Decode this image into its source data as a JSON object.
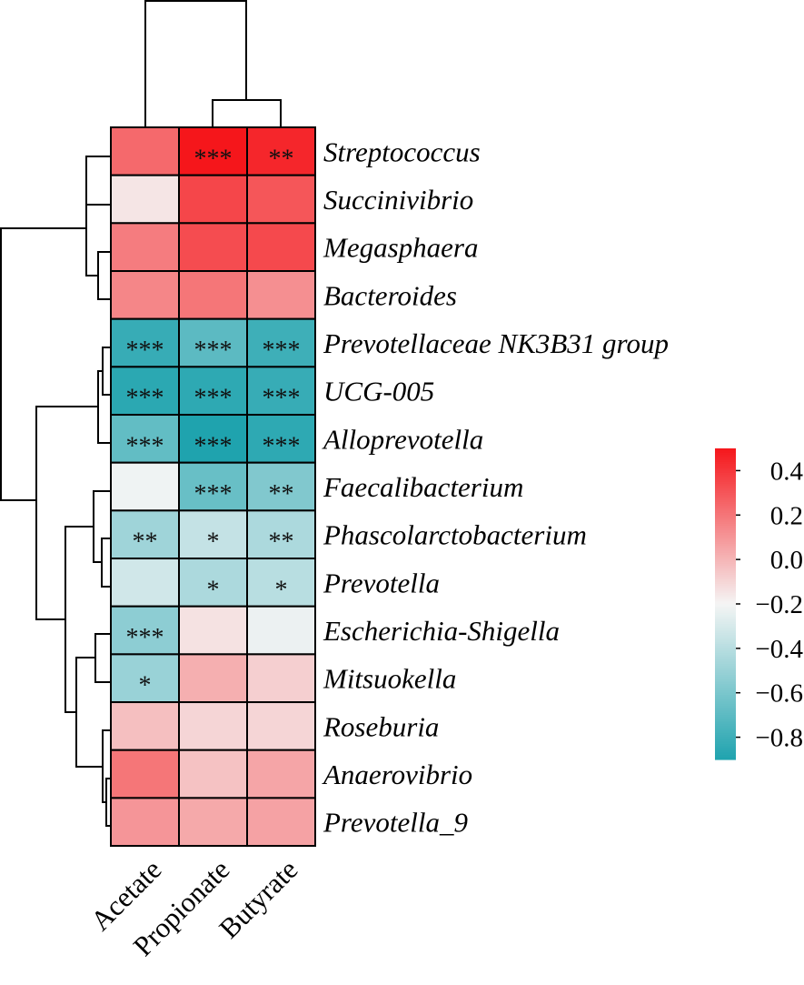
{
  "chart_data": {
    "type": "heatmap",
    "columns": [
      "Acetate",
      "Propionate",
      "Butyrate"
    ],
    "rows": [
      "Streptococcus",
      "Succinivibrio",
      "Megasphaera",
      "Bacteroides",
      "Prevotellaceae NK3B31 group",
      "UCG-005",
      "Alloprevotella",
      "Faecalibacterium",
      "Phascolarctobacterium",
      "Prevotella",
      "Escherichia-Shigella",
      "Mitsuokella",
      "Roseburia",
      "Anaerovibrio",
      "Prevotella_9"
    ],
    "values": [
      [
        0.24,
        0.5,
        0.45
      ],
      [
        -0.15,
        0.35,
        0.3
      ],
      [
        0.18,
        0.33,
        0.34
      ],
      [
        0.15,
        0.2,
        0.12
      ],
      [
        -0.82,
        -0.7,
        -0.8
      ],
      [
        -0.86,
        -0.85,
        -0.82
      ],
      [
        -0.68,
        -0.9,
        -0.85
      ],
      [
        -0.22,
        -0.66,
        -0.58
      ],
      [
        -0.48,
        -0.36,
        -0.44
      ],
      [
        -0.32,
        -0.44,
        -0.4
      ],
      [
        -0.54,
        -0.14,
        -0.23
      ],
      [
        -0.5,
        0.02,
        -0.08
      ],
      [
        -0.03,
        -0.1,
        -0.1
      ],
      [
        0.2,
        -0.04,
        0.05
      ],
      [
        0.1,
        0.04,
        0.06
      ]
    ],
    "significance": [
      [
        "",
        "***",
        "**"
      ],
      [
        "",
        "",
        ""
      ],
      [
        "",
        "",
        ""
      ],
      [
        "",
        "",
        ""
      ],
      [
        "***",
        "***",
        "***"
      ],
      [
        "***",
        "***",
        "***"
      ],
      [
        "***",
        "***",
        "***"
      ],
      [
        "",
        "***",
        "**"
      ],
      [
        "**",
        "*",
        "**"
      ],
      [
        "",
        "*",
        "*"
      ],
      [
        "***",
        "",
        ""
      ],
      [
        "*",
        "",
        ""
      ],
      [
        "",
        "",
        ""
      ],
      [
        "",
        "",
        ""
      ],
      [
        "",
        "",
        ""
      ]
    ],
    "colorbar": {
      "range": [
        -0.9,
        0.5
      ],
      "ticks": [
        "0.4",
        "0.2",
        "0.0",
        "−0.2",
        "−0.4",
        "−0.6",
        "−0.8"
      ],
      "tick_values": [
        0.4,
        0.2,
        0.0,
        -0.2,
        -0.4,
        -0.6,
        -0.8
      ],
      "colors": {
        "low": "#1fa3ae",
        "mid": "#f5f5f5",
        "high": "#f5161b"
      }
    }
  }
}
